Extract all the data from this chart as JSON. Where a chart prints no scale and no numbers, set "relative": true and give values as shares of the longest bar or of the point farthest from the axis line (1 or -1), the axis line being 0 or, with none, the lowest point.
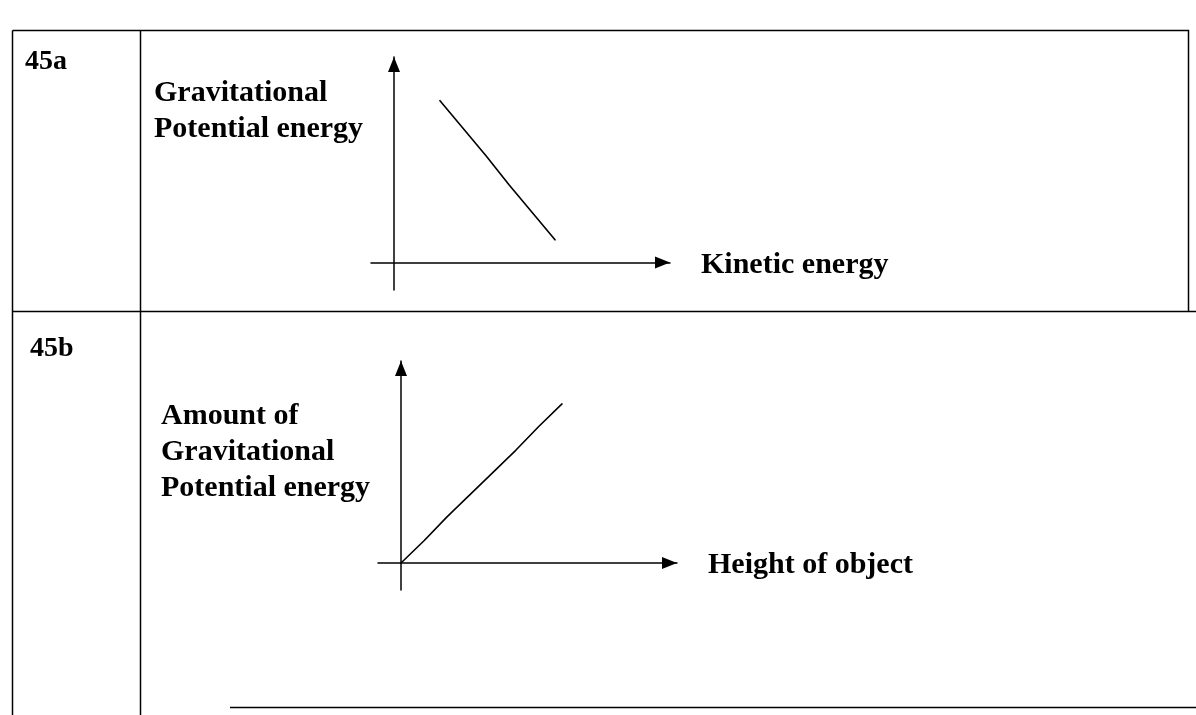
{
  "chart_data": [
    {
      "type": "line",
      "annotations": [
        "45a"
      ],
      "ylabel": "Gravitational Potential energy",
      "xlabel": "Kinetic energy",
      "relative": true,
      "categories": [
        null,
        null,
        null,
        null,
        null,
        null,
        null,
        null,
        null,
        null,
        null,
        null,
        null,
        null
      ],
      "values": [
        null,
        null,
        null,
        1,
        0.83,
        0.66,
        0.48,
        0.31,
        0.14,
        null,
        null,
        null,
        null,
        null
      ],
      "color": "#000000"
    },
    {
      "type": "line",
      "annotations": [
        "45b"
      ],
      "ylabel": "Amount of Gravitational Potential energy",
      "xlabel": "Height of object",
      "relative": true,
      "categories": [
        null,
        null,
        null,
        null,
        null,
        null,
        null,
        null,
        null,
        null,
        null,
        null,
        null,
        null
      ],
      "values": [
        null,
        0,
        0.14,
        0.29,
        0.43,
        0.57,
        0.71,
        0.86,
        1,
        null,
        null,
        null,
        null,
        null
      ],
      "color": "#000000"
    }
  ]
}
